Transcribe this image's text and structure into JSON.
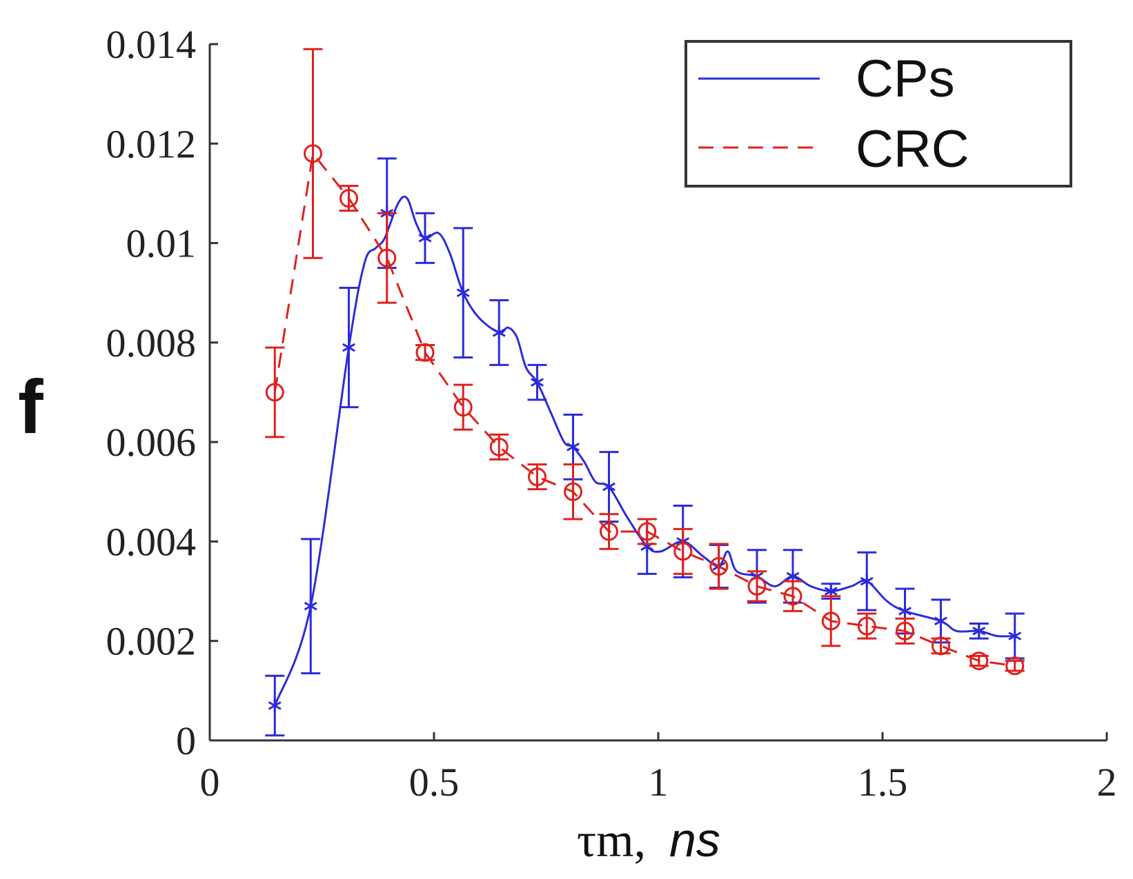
{
  "chart_data": {
    "type": "line",
    "title": "",
    "ylabel": "f",
    "xlabel": "τm, ns",
    "xlabel_symbol": "τm,",
    "xlabel_unit": "ns",
    "xlim": [
      0,
      2
    ],
    "ylim": [
      0,
      0.014
    ],
    "xticks": [
      0,
      0.5,
      1,
      1.5,
      2
    ],
    "xtick_labels": [
      "0",
      "0.5",
      "1",
      "1.5",
      "2"
    ],
    "yticks": [
      0,
      0.002,
      0.004,
      0.006,
      0.008,
      0.01,
      0.012,
      0.014
    ],
    "ytick_labels": [
      "0",
      "0.002",
      "0.004",
      "0.006",
      "0.008",
      "0.01",
      "0.012",
      "0.014"
    ],
    "grid": false,
    "legend_position": "top-right",
    "series": [
      {
        "name": "CPs",
        "color": "#2b2bdb",
        "line_style": "solid",
        "marker": "asterisk",
        "x": [
          0.145,
          0.225,
          0.31,
          0.395,
          0.48,
          0.565,
          0.645,
          0.73,
          0.81,
          0.89,
          0.975,
          1.055,
          1.135,
          1.22,
          1.3,
          1.385,
          1.465,
          1.55,
          1.63,
          1.715,
          1.795
        ],
        "values": [
          0.0007,
          0.0027,
          0.0079,
          0.0106,
          0.0101,
          0.009,
          0.0082,
          0.0072,
          0.0059,
          0.0051,
          0.0039,
          0.004,
          0.0035,
          0.0033,
          0.0033,
          0.003,
          0.0032,
          0.0026,
          0.0024,
          0.0022,
          0.0021
        ],
        "errors": [
          0.0006,
          0.00135,
          0.0012,
          0.0011,
          0.0005,
          0.0013,
          0.00065,
          0.00035,
          0.00065,
          0.0007,
          0.00055,
          0.00072,
          0.00043,
          0.00053,
          0.00053,
          0.00015,
          0.00058,
          0.00045,
          0.00043,
          0.00015,
          0.00045
        ],
        "curve_x": [
          0.145,
          0.225,
          0.31,
          0.345,
          0.37,
          0.39,
          0.42,
          0.44,
          0.46,
          0.48,
          0.51,
          0.535,
          0.565,
          0.6,
          0.645,
          0.665,
          0.685,
          0.705,
          0.73,
          0.76,
          0.79,
          0.81,
          0.835,
          0.86,
          0.89,
          0.93,
          0.975,
          1.005,
          1.055,
          1.1,
          1.135,
          1.155,
          1.175,
          1.22,
          1.26,
          1.3,
          1.34,
          1.385,
          1.43,
          1.465,
          1.51,
          1.55,
          1.63,
          1.665,
          1.715,
          1.755,
          1.795
        ],
        "curve_y": [
          0.0007,
          0.0027,
          0.0079,
          0.0096,
          0.0099,
          0.0101,
          0.0108,
          0.0109,
          0.0104,
          0.0101,
          0.0102,
          0.0098,
          0.009,
          0.0085,
          0.0082,
          0.0083,
          0.0081,
          0.0075,
          0.0072,
          0.0066,
          0.006,
          0.0059,
          0.0056,
          0.0052,
          0.0051,
          0.0045,
          0.0039,
          0.0038,
          0.004,
          0.0037,
          0.0035,
          0.0038,
          0.0034,
          0.0033,
          0.0031,
          0.0033,
          0.0031,
          0.003,
          0.0031,
          0.0032,
          0.0028,
          0.0026,
          0.0024,
          0.0022,
          0.0022,
          0.0021,
          0.0021
        ]
      },
      {
        "name": "CRC",
        "color": "#e0201c",
        "line_style": "dashed",
        "marker": "circle",
        "x": [
          0.145,
          0.23,
          0.31,
          0.395,
          0.48,
          0.565,
          0.645,
          0.73,
          0.81,
          0.89,
          0.975,
          1.055,
          1.135,
          1.22,
          1.3,
          1.385,
          1.465,
          1.55,
          1.63,
          1.715,
          1.795
        ],
        "values": [
          0.007,
          0.0118,
          0.0109,
          0.0097,
          0.0078,
          0.0067,
          0.0059,
          0.0053,
          0.005,
          0.0042,
          0.0042,
          0.0038,
          0.0035,
          0.0031,
          0.0029,
          0.0024,
          0.0023,
          0.0022,
          0.0019,
          0.0016,
          0.0015
        ],
        "errors": [
          0.0009,
          0.0021,
          0.00025,
          0.0009,
          0.00015,
          0.00045,
          0.00025,
          0.00025,
          0.00055,
          0.00035,
          0.00025,
          0.00045,
          0.00045,
          0.0003,
          0.0003,
          0.0005,
          0.00025,
          0.00025,
          0.00015,
          0.0001,
          0.0001
        ]
      }
    ]
  }
}
